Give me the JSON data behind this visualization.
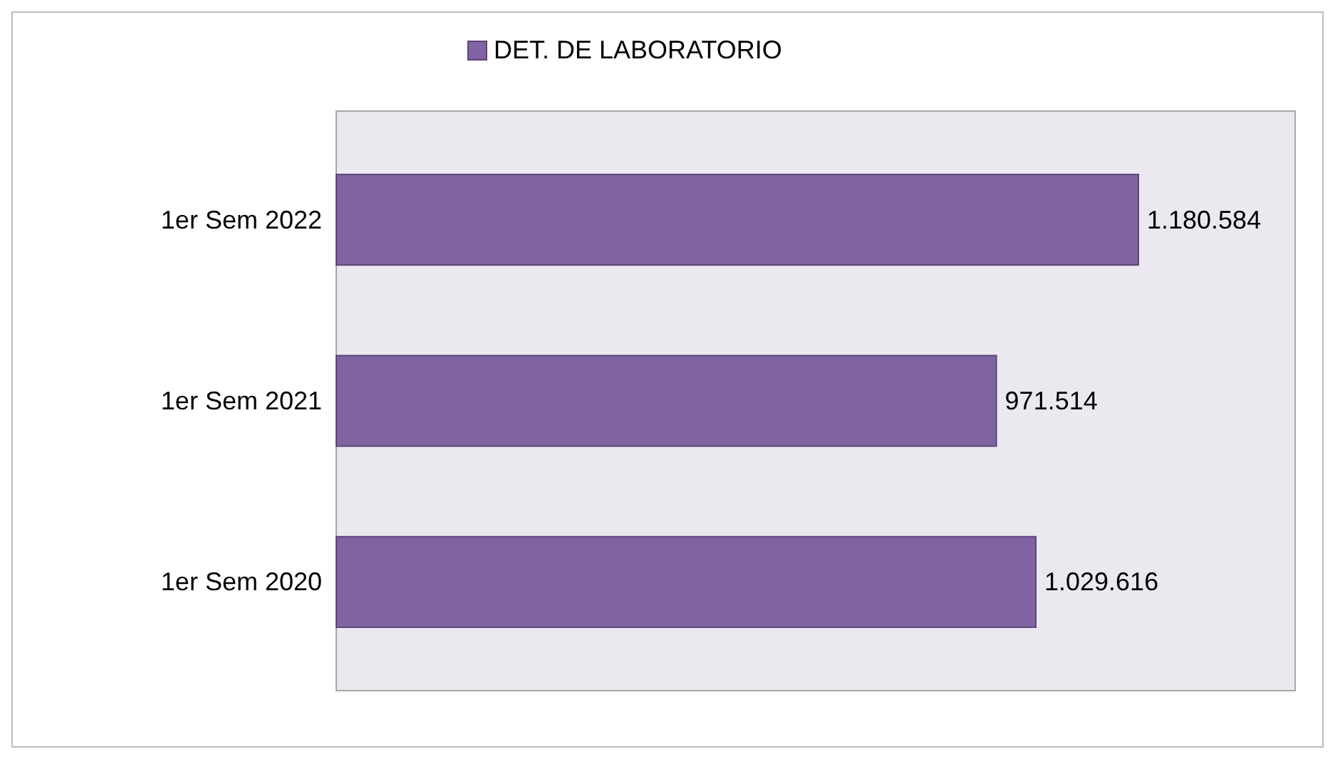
{
  "chart_data": {
    "type": "bar",
    "orientation": "horizontal",
    "categories": [
      "1er Sem 2022",
      "1er Sem 2021",
      "1er Sem 2020"
    ],
    "series": [
      {
        "name": "DET. DE LABORATORIO",
        "color": "#8064a2",
        "values": [
          1180584,
          971514,
          1029616
        ],
        "value_labels": [
          "1.180.584",
          "971.514",
          "1.029.616"
        ]
      }
    ],
    "legend": "top"
  }
}
